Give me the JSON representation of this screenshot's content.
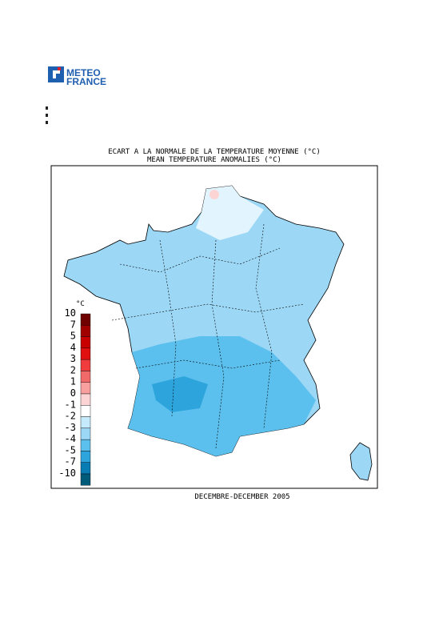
{
  "header": {
    "logo_line1": "METEO",
    "logo_line2": "FRANCE"
  },
  "map": {
    "title": "ECART A LA NORMALE DE LA TEMPERATURE MOYENNE (°C)",
    "subtitle": "MEAN TEMPERATURE ANOMALIES (°C)",
    "period": "DECEMBRE-DECEMBER 2005",
    "legend": {
      "unit": "°C",
      "labels": [
        "10",
        "7",
        "5",
        "4",
        "3",
        "2",
        "1",
        "0",
        "-1",
        "-2",
        "-3",
        "-4",
        "-5",
        "-7",
        "-10"
      ],
      "colors": [
        "#6e0000",
        "#a00000",
        "#c80000",
        "#e01010",
        "#f03c3c",
        "#f06a6a",
        "#f8a0a0",
        "#fcd4d4",
        "#ffffff",
        "#c4eafb",
        "#9cd8f6",
        "#5cc0ee",
        "#2ea4dc",
        "#0a7cb4",
        "#005a7a"
      ]
    }
  }
}
